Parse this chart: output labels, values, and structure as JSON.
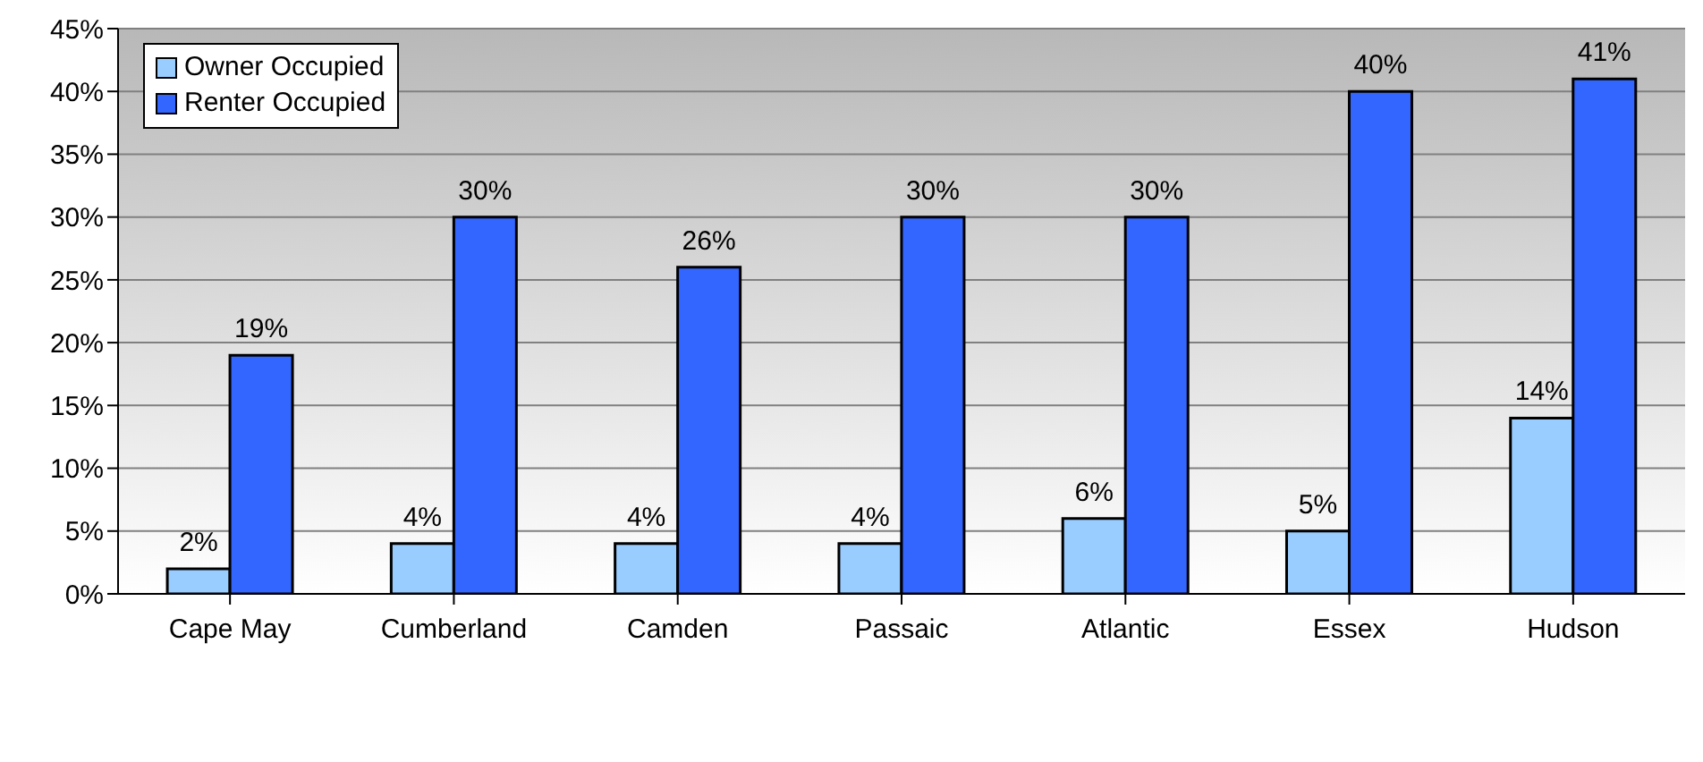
{
  "chart_data": {
    "type": "bar",
    "categories": [
      "Cape May",
      "Cumberland",
      "Camden",
      "Passaic",
      "Atlantic",
      "Essex",
      "Hudson"
    ],
    "series": [
      {
        "name": "Owner Occupied",
        "color": "#99ccff",
        "values": [
          2,
          4,
          4,
          4,
          6,
          5,
          14
        ],
        "value_labels": [
          "2%",
          "4%",
          "4%",
          "4%",
          "6%",
          "5%",
          "14%"
        ]
      },
      {
        "name": "Renter Occupied",
        "color": "#3366ff",
        "values": [
          19,
          30,
          26,
          30,
          30,
          40,
          41
        ],
        "value_labels": [
          "19%",
          "30%",
          "26%",
          "30%",
          "30%",
          "40%",
          "41%"
        ]
      }
    ],
    "ylim": [
      0,
      45
    ],
    "yticks": [
      {
        "value": 0,
        "label": "0%"
      },
      {
        "value": 5,
        "label": "5%"
      },
      {
        "value": 10,
        "label": "10%"
      },
      {
        "value": 15,
        "label": "15%"
      },
      {
        "value": 20,
        "label": "20%"
      },
      {
        "value": 25,
        "label": "25%"
      },
      {
        "value": 30,
        "label": "30%"
      },
      {
        "value": 35,
        "label": "35%"
      },
      {
        "value": 40,
        "label": "40%"
      },
      {
        "value": 45,
        "label": "45%"
      }
    ],
    "grid": "y",
    "legend": "top left"
  }
}
